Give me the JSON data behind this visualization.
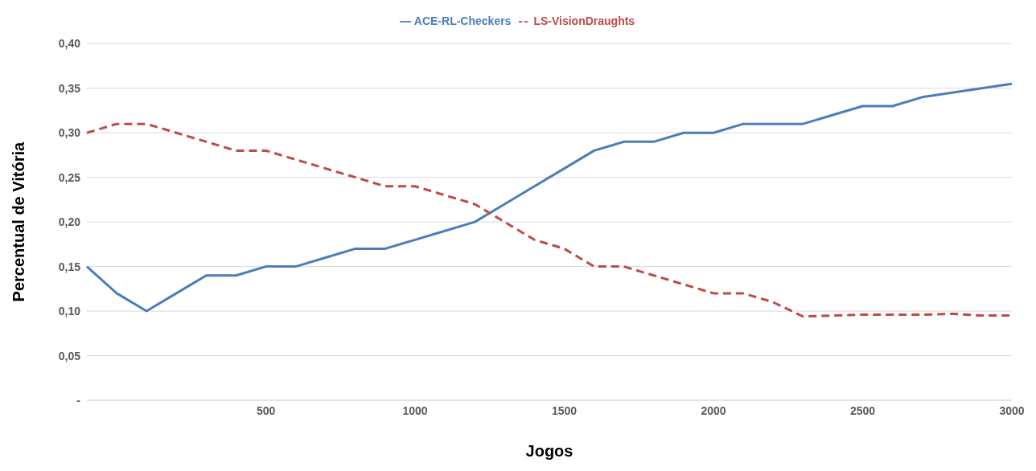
{
  "chart_data": {
    "type": "line",
    "xlabel": "Jogos",
    "ylabel": "Percentual de Vitória",
    "categories": [
      null,
      null,
      null,
      null,
      null,
      null,
      "500",
      null,
      null,
      null,
      null,
      "1000",
      null,
      null,
      null,
      null,
      "1500",
      null,
      null,
      null,
      null,
      "2000",
      null,
      null,
      null,
      null,
      "2500",
      null,
      null,
      null,
      null,
      "3000"
    ],
    "series": [
      {
        "name": "ACE-RL-Checkers",
        "color": "#4a7ebb",
        "line_style": "solid",
        "values": [
          0.15,
          0.12,
          0.1,
          0.12,
          0.14,
          0.14,
          0.15,
          0.15,
          0.16,
          0.17,
          0.17,
          0.18,
          0.19,
          0.2,
          0.22,
          0.24,
          0.26,
          0.28,
          0.29,
          0.29,
          0.3,
          0.3,
          0.31,
          0.31,
          0.31,
          0.32,
          0.33,
          0.33,
          0.34,
          0.345,
          0.35,
          0.355
        ]
      },
      {
        "name": "LS-VisionDraughts",
        "color": "#be4b48",
        "line_style": "dashed",
        "values": [
          0.3,
          0.31,
          0.31,
          0.3,
          0.29,
          0.28,
          0.28,
          0.27,
          0.26,
          0.25,
          0.24,
          0.24,
          0.23,
          0.22,
          0.2,
          0.18,
          0.17,
          0.15,
          0.15,
          0.14,
          0.13,
          0.12,
          0.12,
          0.11,
          0.094,
          0.095,
          0.096,
          0.096,
          0.096,
          0.097,
          0.095,
          0.095
        ]
      }
    ],
    "ylim": [
      0,
      0.4
    ],
    "yticks": [
      {
        "value": 0,
        "label": "-"
      },
      {
        "value": 0.05,
        "label": "0,05"
      },
      {
        "value": 0.1,
        "label": "0,10"
      },
      {
        "value": 0.15,
        "label": "0,15"
      },
      {
        "value": 0.2,
        "label": "0,20"
      },
      {
        "value": 0.25,
        "label": "0,25"
      },
      {
        "value": 0.3,
        "label": "0,30"
      },
      {
        "value": 0.35,
        "label": "0,35"
      },
      {
        "value": 0.4,
        "label": "0,40"
      }
    ],
    "grid": "y",
    "legend": "top",
    "marker": "none"
  }
}
